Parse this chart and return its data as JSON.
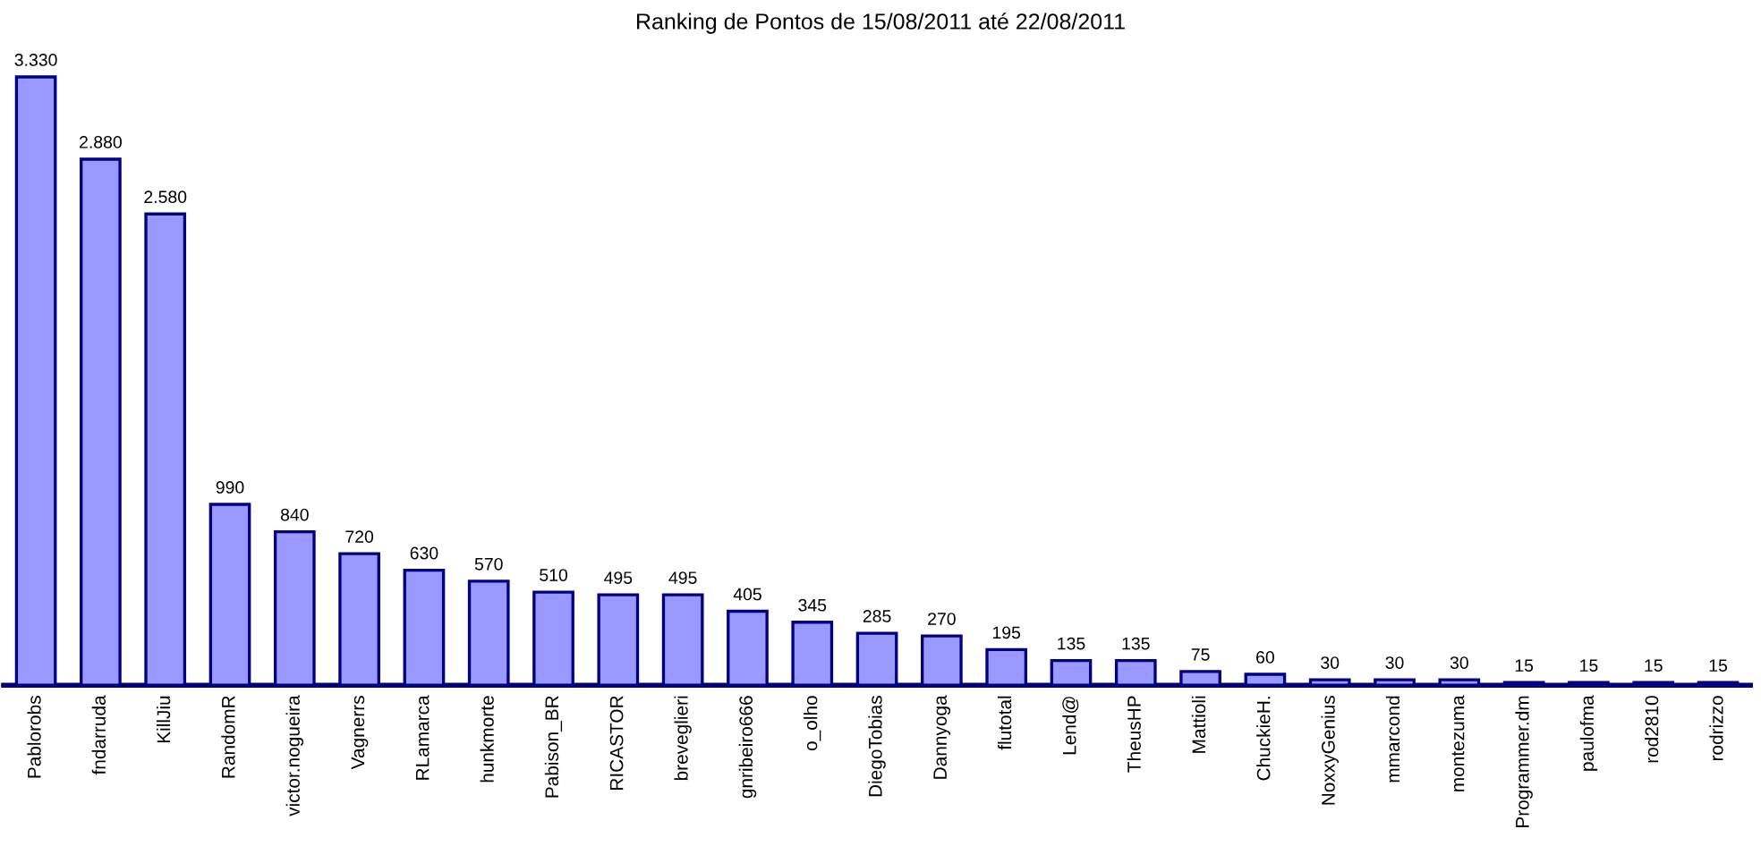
{
  "chart_data": {
    "type": "bar",
    "title": "Ranking de Pontos de 15/08/2011 até 22/08/2011",
    "categories": [
      "Pablorobs",
      "fndarruda",
      "KillJiu",
      "RandomR",
      "victor.nogueira",
      "Vagnerrs",
      "RLamarca",
      "hunkmorte",
      "Pabison_BR",
      "RICASTOR",
      "breveglieri",
      "gnribeiro666",
      "o_olho",
      "DiegoTobias",
      "Dannyoga",
      "flutotal",
      "Lend@",
      "TheusHP",
      "Mattioli",
      "ChuckieH.",
      "NoxxyGenius",
      "mmarcond",
      "montezuma",
      "Programmer.dm",
      "paulofma",
      "rod2810",
      "rodrizzo"
    ],
    "values": [
      3330,
      2880,
      2580,
      990,
      840,
      720,
      630,
      570,
      510,
      495,
      495,
      405,
      345,
      285,
      270,
      195,
      135,
      135,
      75,
      60,
      30,
      30,
      30,
      15,
      15,
      15,
      15
    ],
    "value_labels": [
      "3.330",
      "2.880",
      "2.580",
      "990",
      "840",
      "720",
      "630",
      "570",
      "510",
      "495",
      "495",
      "405",
      "345",
      "285",
      "270",
      "195",
      "135",
      "135",
      "75",
      "60",
      "30",
      "30",
      "30",
      "15",
      "15",
      "15",
      "15"
    ],
    "color": "#9999ff",
    "grid": false,
    "legend": false
  }
}
